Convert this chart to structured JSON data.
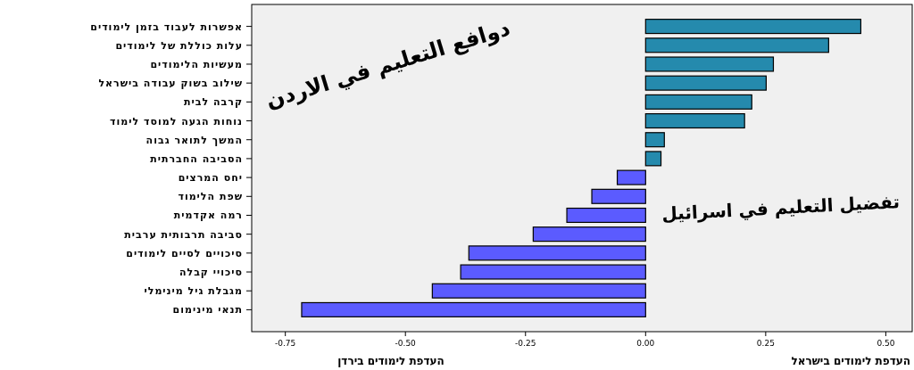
{
  "chart_data": {
    "type": "bar",
    "orientation": "horizontal",
    "categories": [
      "אפשרות לעבוד בזמן לימודים",
      "עלות כוללת של לימודים",
      "מעשיות הלימודים",
      "שילוב בשוק עבודה בישראל",
      "קרבה לבית",
      "נוחות הגעה למוסד לימוד",
      "המשך לתואר גבוה",
      "הסביבה החברתית",
      "יחס המרצים",
      "שפת הלימוד",
      "רמה אקדמית",
      "סביבה תרבותית ערבית",
      "סיכויים לסיים לימודים",
      "סיכויי קבלה",
      "מגבלת גיל מינימלי",
      "תנאי מינימום"
    ],
    "values": [
      0.448,
      0.381,
      0.266,
      0.251,
      0.221,
      0.206,
      0.039,
      0.032,
      -0.059,
      -0.112,
      -0.164,
      -0.234,
      -0.368,
      -0.385,
      -0.444,
      -0.716
    ],
    "colors": [
      "#258aad",
      "#258aad",
      "#258aad",
      "#258aad",
      "#258aad",
      "#258aad",
      "#258aad",
      "#258aad",
      "#5b5bff",
      "#5b5bff",
      "#5b5bff",
      "#5b5bff",
      "#5b5bff",
      "#5b5bff",
      "#5b5bff",
      "#5b5bff"
    ],
    "xlim": [
      -0.82,
      0.555
    ],
    "xticks": [
      {
        "value": -0.75,
        "label": "-0.75"
      },
      {
        "value": -0.5,
        "label": "-0.50"
      },
      {
        "value": -0.25,
        "label": "-0.25"
      },
      {
        "value": 0,
        "label": "0.00"
      },
      {
        "value": 0.25,
        "label": "0.25"
      },
      {
        "value": 0.5,
        "label": "0.50"
      }
    ],
    "annotations": [
      "دوافع التعليم في الاردن",
      "تفضيل التعليم في اسرائيل",
      "העדפת לימודים בירדן",
      "העדפת לימודים בישראל"
    ],
    "grid": false
  }
}
